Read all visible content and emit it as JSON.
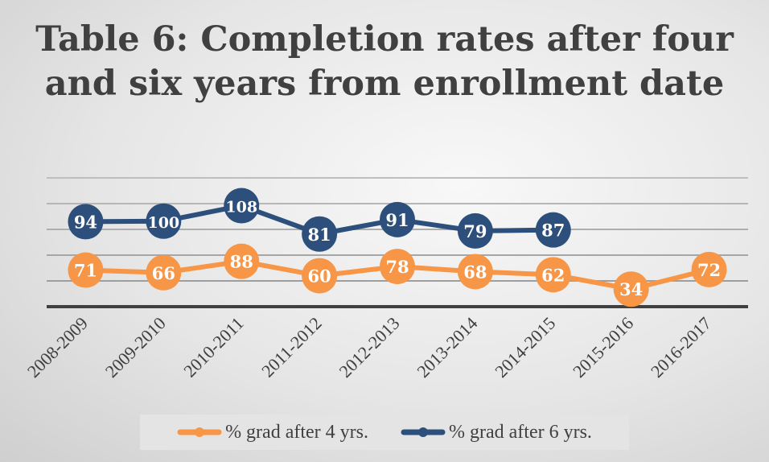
{
  "chart_data": {
    "type": "line",
    "stacked": true,
    "title": "Table 6: Completion rates after four and six years from enrollment date",
    "categories": [
      "2008-2009",
      "2009-2010",
      "2010-2011",
      "2011-2012",
      "2012-2013",
      "2013-2014",
      "2014-2015",
      "2015-2016",
      "2016-2017"
    ],
    "series": [
      {
        "name": "% grad after 4 yrs.",
        "color": "#f79646",
        "values": [
          71,
          66,
          88,
          60,
          78,
          68,
          62,
          34,
          72
        ]
      },
      {
        "name": "% grad after 6 yrs.",
        "color": "#2c4f7c",
        "values": [
          94,
          100,
          108,
          81,
          91,
          79,
          87,
          null,
          null
        ]
      }
    ],
    "ylim": [
      0,
      250
    ],
    "grid": true,
    "y_axis_labels_shown": false,
    "legend_position": "bottom"
  }
}
